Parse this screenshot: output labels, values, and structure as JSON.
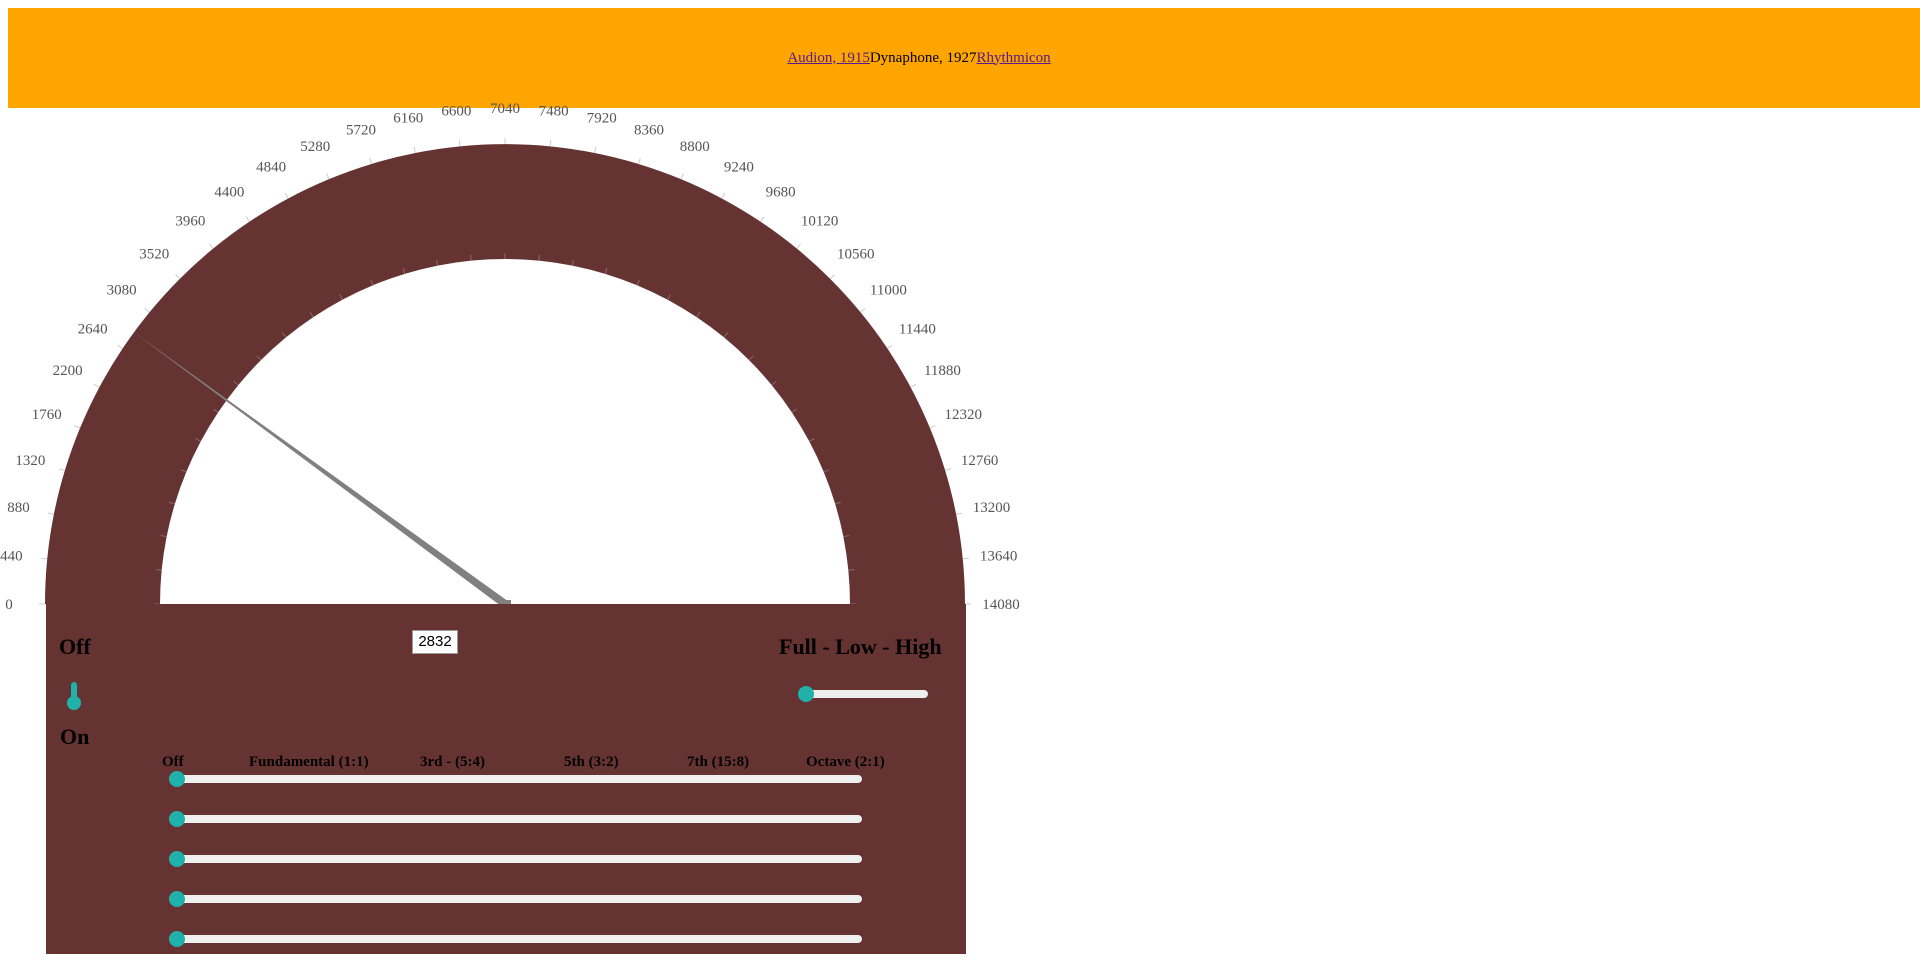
{
  "nav": {
    "links": [
      {
        "label": "Audion, 1915",
        "link": true
      },
      {
        "label": "Dynaphone, 1927",
        "link": false
      },
      {
        "label": "Rhythmicon",
        "link": true
      }
    ]
  },
  "colors": {
    "nav_bg": "#ffa500",
    "dial_band": "#663333",
    "needle": "#808080",
    "control_accent": "#20b2aa",
    "track": "#efefef"
  },
  "dial": {
    "scale_labels": [
      "0",
      "440",
      "880",
      "1320",
      "1760",
      "2200",
      "2640",
      "3080",
      "3520",
      "3960",
      "4400",
      "4840",
      "5280",
      "5720",
      "6160",
      "6600",
      "7040",
      "7480",
      "7920",
      "8360",
      "8800",
      "9240",
      "9680",
      "10120",
      "10560",
      "11000",
      "11440",
      "11880",
      "12320",
      "12760",
      "13200",
      "13640",
      "14080"
    ],
    "min": 0,
    "max": 14080,
    "needle_value": 2832
  },
  "controls": {
    "power_off_label": "Off",
    "power_on_label": "On",
    "power_state": "On",
    "frequency_value": "2832",
    "filter_label": "Full - Low - High",
    "filter_value": 0
  },
  "harmonics": {
    "labels": [
      "Off",
      "Fundamental (1:1)",
      "3rd - (5:4)",
      "5th (3:2)",
      "7th (15:8)",
      "Octave (2:1)"
    ],
    "slider_values": [
      0,
      0,
      0,
      0,
      0
    ]
  }
}
